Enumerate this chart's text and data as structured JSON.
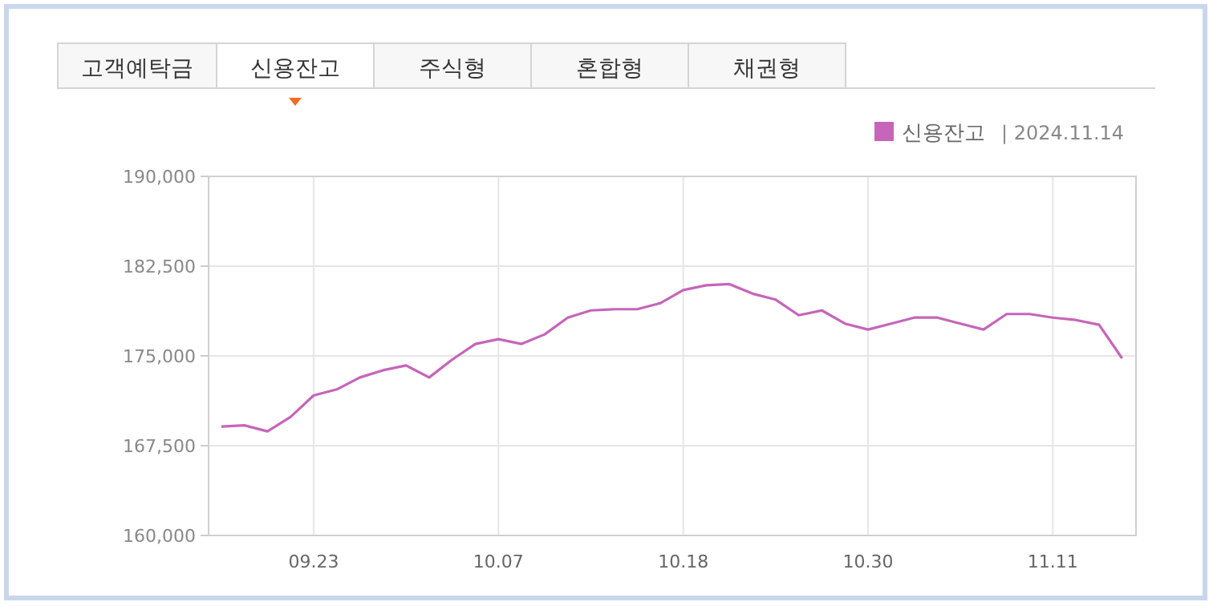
{
  "chart_data": {
    "type": "line",
    "subtitle": "|  2024.11.14",
    "annotations": [
      "고객예탁금",
      "신용잔고",
      "주식형",
      "혼합형",
      "채권형"
    ],
    "categories": [
      null,
      null,
      null,
      null,
      "09.23",
      null,
      null,
      null,
      null,
      null,
      null,
      null,
      "10.07",
      null,
      null,
      null,
      null,
      null,
      null,
      null,
      "10.18",
      null,
      null,
      null,
      null,
      null,
      null,
      null,
      "10.30",
      null,
      null,
      null,
      null,
      null,
      null,
      null,
      "11.11",
      null,
      null,
      null
    ],
    "series": [
      {
        "name": "신용잔고",
        "color": "#c665b9",
        "values": [
          169100,
          169200,
          168700,
          169900,
          171700,
          172200,
          173200,
          173800,
          174200,
          173200,
          174700,
          176000,
          176400,
          176000,
          176800,
          178200,
          178800,
          178900,
          178900,
          179400,
          180500,
          180900,
          181000,
          180200,
          179700,
          178400,
          178800,
          177700,
          177200,
          177700,
          178200,
          178200,
          177700,
          177200,
          178500,
          178500,
          178200,
          178000,
          177600,
          174800
        ]
      }
    ],
    "ylim": [
      160000,
      190000
    ],
    "yticks": [
      {
        "value": 160000,
        "label": "160,000"
      },
      {
        "value": 167500,
        "label": "167,500"
      },
      {
        "value": 175000,
        "label": "175,000"
      },
      {
        "value": 182500,
        "label": "182,500"
      },
      {
        "value": 190000,
        "label": "190,000"
      }
    ],
    "grid": true,
    "legend": "top right",
    "marker": "none",
    "line_style": "solid"
  }
}
